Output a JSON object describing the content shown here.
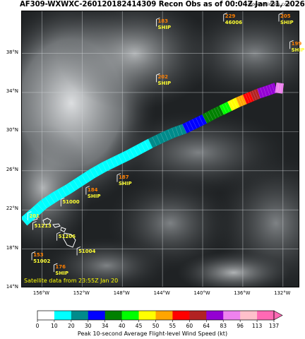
{
  "title": "AF309-WXWXC-260120182414309 Recon Obs as of 00:04Z Jan 21, 2026",
  "credit": "tropicaltidbits.com",
  "satellite_note": "Satellite data from 23:55Z Jan 20",
  "map": {
    "lon_range": [
      -158,
      -130.3
    ],
    "lat_range": [
      14,
      42.3
    ],
    "lat_ticks": [
      {
        "v": 14,
        "label": "14°N"
      },
      {
        "v": 18,
        "label": "18°N"
      },
      {
        "v": 22,
        "label": "22°N"
      },
      {
        "v": 26,
        "label": "26°N"
      },
      {
        "v": 30,
        "label": "30°N"
      },
      {
        "v": 34,
        "label": "34°N"
      },
      {
        "v": 38,
        "label": "38°N"
      }
    ],
    "lon_ticks": [
      {
        "v": -156,
        "label": "156°W"
      },
      {
        "v": -152,
        "label": "152°W"
      },
      {
        "v": -148,
        "label": "148°W"
      },
      {
        "v": -144,
        "label": "144°W"
      },
      {
        "v": -140,
        "label": "140°W"
      },
      {
        "v": -136,
        "label": "136°W"
      },
      {
        "v": -132,
        "label": "132°W"
      }
    ]
  },
  "observations": [
    {
      "lon": -144.4,
      "lat": 40.9,
      "value": "183",
      "label": "SHIP"
    },
    {
      "lon": -137.7,
      "lat": 41.4,
      "value": "229",
      "label": "46006"
    },
    {
      "lon": -132.2,
      "lat": 41.4,
      "value": "205",
      "label": "SHIP"
    },
    {
      "lon": -131.1,
      "lat": 38.6,
      "value": "199",
      "label": "SHIP"
    },
    {
      "lon": -144.4,
      "lat": 35.2,
      "value": "202",
      "label": "SHIP"
    },
    {
      "lon": -148.3,
      "lat": 25.0,
      "value": "187",
      "label": "SHIP"
    },
    {
      "lon": -151.4,
      "lat": 23.7,
      "value": "184",
      "label": "SHIP"
    },
    {
      "lon": -153.9,
      "lat": 22.5,
      "value": "",
      "label": "51000"
    },
    {
      "lon": -157.2,
      "lat": 21.1,
      "value": "",
      "label": "201"
    },
    {
      "lon": -156.7,
      "lat": 20.1,
      "value": "",
      "label": "51213"
    },
    {
      "lon": -154.3,
      "lat": 19.0,
      "value": "",
      "label": "51206"
    },
    {
      "lon": -156.8,
      "lat": 17.0,
      "value": "153",
      "label": "51002"
    },
    {
      "lon": -152.3,
      "lat": 17.5,
      "value": "",
      "label": "51004"
    },
    {
      "lon": -154.6,
      "lat": 15.8,
      "value": "176",
      "label": "SHIP"
    }
  ],
  "flight_track": [
    {
      "lon": -157.8,
      "lat": 20.8,
      "band": 1
    },
    {
      "lon": -156.9,
      "lat": 21.6,
      "band": 1
    },
    {
      "lon": -155.8,
      "lat": 22.6,
      "band": 1
    },
    {
      "lon": -154.6,
      "lat": 23.4,
      "band": 1
    },
    {
      "lon": -153.4,
      "lat": 24.1,
      "band": 1
    },
    {
      "lon": -152.2,
      "lat": 24.9,
      "band": 1
    },
    {
      "lon": -151.0,
      "lat": 25.7,
      "band": 1
    },
    {
      "lon": -149.8,
      "lat": 26.4,
      "band": 1
    },
    {
      "lon": -148.6,
      "lat": 27.0,
      "band": 1
    },
    {
      "lon": -147.4,
      "lat": 27.6,
      "band": 1
    },
    {
      "lon": -146.3,
      "lat": 28.2,
      "band": 1
    },
    {
      "lon": -145.2,
      "lat": 28.8,
      "band": 2
    },
    {
      "lon": -144.0,
      "lat": 29.4,
      "band": 2
    },
    {
      "lon": -142.9,
      "lat": 29.9,
      "band": 2
    },
    {
      "lon": -141.8,
      "lat": 30.3,
      "band": 3
    },
    {
      "lon": -140.8,
      "lat": 30.8,
      "band": 3
    },
    {
      "lon": -139.8,
      "lat": 31.3,
      "band": 4
    },
    {
      "lon": -138.9,
      "lat": 31.8,
      "band": 4
    },
    {
      "lon": -138.1,
      "lat": 32.2,
      "band": 5
    },
    {
      "lon": -137.3,
      "lat": 32.6,
      "band": 6
    },
    {
      "lon": -136.5,
      "lat": 33.0,
      "band": 7
    },
    {
      "lon": -135.8,
      "lat": 33.3,
      "band": 8
    },
    {
      "lon": -135.1,
      "lat": 33.6,
      "band": 9
    },
    {
      "lon": -134.4,
      "lat": 33.9,
      "band": 10
    },
    {
      "lon": -133.5,
      "lat": 34.2,
      "band": 10
    },
    {
      "lon": -132.7,
      "lat": 34.5,
      "band": 11
    },
    {
      "lon": -132.0,
      "lat": 34.4,
      "band": 1
    }
  ],
  "colorbar": {
    "title": "Peak 10-second Average Flight-level Wind Speed (kt)",
    "ticks": [
      "0",
      "10",
      "20",
      "30",
      "34",
      "40",
      "45",
      "50",
      "55",
      "60",
      "64",
      "83",
      "96",
      "113",
      "137"
    ],
    "colors": [
      "#ffffff",
      "#00ffff",
      "#008b8b",
      "#0000ff",
      "#008000",
      "#00ff00",
      "#ffff00",
      "#ffa500",
      "#ff0000",
      "#b22222",
      "#9400d3",
      "#ee82ee",
      "#ffc0cb",
      "#ff69b4"
    ]
  }
}
